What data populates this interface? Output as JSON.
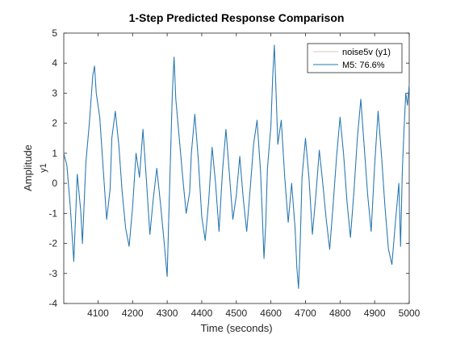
{
  "chart_data": {
    "type": "line",
    "title": "1-Step Predicted Response Comparison",
    "xlabel": "Time (seconds)",
    "ylabel": "Amplitude",
    "channel_label": "y1",
    "xlim": [
      4001,
      5000
    ],
    "ylim": [
      -4,
      5
    ],
    "x_ticks": [
      4100,
      4200,
      4300,
      4400,
      4500,
      4600,
      4700,
      4800,
      4900,
      5000
    ],
    "y_ticks": [
      -4,
      -3,
      -2,
      -1,
      0,
      1,
      2,
      3,
      4,
      5
    ],
    "legend_position": "top-right",
    "grid": false,
    "series": [
      {
        "name": "noise5v (y1)",
        "color": "#d9c4c4",
        "points": [
          [
            4001,
            1.0
          ],
          [
            4010,
            0.6
          ],
          [
            4020,
            -0.8
          ],
          [
            4030,
            -2.6
          ],
          [
            4040,
            0.3
          ],
          [
            4050,
            -0.9
          ],
          [
            4055,
            -2.0
          ],
          [
            4065,
            0.7
          ],
          [
            4075,
            2.0
          ],
          [
            4085,
            3.6
          ],
          [
            4090,
            3.9
          ],
          [
            4095,
            3.0
          ],
          [
            4105,
            2.2
          ],
          [
            4115,
            0.5
          ],
          [
            4125,
            -1.2
          ],
          [
            4135,
            -0.2
          ],
          [
            4140,
            1.5
          ],
          [
            4150,
            2.4
          ],
          [
            4160,
            1.3
          ],
          [
            4170,
            -0.3
          ],
          [
            4180,
            -1.5
          ],
          [
            4190,
            -2.1
          ],
          [
            4200,
            -0.8
          ],
          [
            4210,
            1.0
          ],
          [
            4220,
            0.2
          ],
          [
            4230,
            1.8
          ],
          [
            4240,
            0.1
          ],
          [
            4250,
            -1.7
          ],
          [
            4260,
            -0.5
          ],
          [
            4270,
            0.5
          ],
          [
            4280,
            -0.6
          ],
          [
            4290,
            -1.8
          ],
          [
            4300,
            -3.1
          ],
          [
            4305,
            -1.0
          ],
          [
            4310,
            1.0
          ],
          [
            4315,
            3.0
          ],
          [
            4320,
            4.2
          ],
          [
            4325,
            2.8
          ],
          [
            4335,
            1.5
          ],
          [
            4345,
            0.2
          ],
          [
            4355,
            -1.0
          ],
          [
            4365,
            -0.3
          ],
          [
            4370,
            1.0
          ],
          [
            4380,
            2.3
          ],
          [
            4390,
            0.8
          ],
          [
            4400,
            -1.1
          ],
          [
            4410,
            -1.9
          ],
          [
            4420,
            -0.6
          ],
          [
            4430,
            1.2
          ],
          [
            4440,
            0.0
          ],
          [
            4450,
            -1.6
          ],
          [
            4460,
            0.4
          ],
          [
            4470,
            1.8
          ],
          [
            4480,
            0.3
          ],
          [
            4490,
            -1.2
          ],
          [
            4500,
            -0.4
          ],
          [
            4510,
            0.9
          ],
          [
            4520,
            -0.5
          ],
          [
            4530,
            -1.6
          ],
          [
            4540,
            -0.2
          ],
          [
            4550,
            1.3
          ],
          [
            4560,
            2.1
          ],
          [
            4570,
            0.4
          ],
          [
            4575,
            -1.0
          ],
          [
            4580,
            -2.5
          ],
          [
            4585,
            -1.4
          ],
          [
            4590,
            0.5
          ],
          [
            4600,
            1.9
          ],
          [
            4605,
            3.5
          ],
          [
            4610,
            4.6
          ],
          [
            4615,
            3.0
          ],
          [
            4620,
            1.3
          ],
          [
            4630,
            2.1
          ],
          [
            4640,
            0.2
          ],
          [
            4650,
            -1.3
          ],
          [
            4660,
            0.0
          ],
          [
            4670,
            -1.5
          ],
          [
            4675,
            -2.8
          ],
          [
            4680,
            -3.5
          ],
          [
            4685,
            -1.9
          ],
          [
            4690,
            0.2
          ],
          [
            4700,
            1.5
          ],
          [
            4710,
            0.2
          ],
          [
            4720,
            -1.7
          ],
          [
            4730,
            -0.4
          ],
          [
            4740,
            1.1
          ],
          [
            4750,
            0.0
          ],
          [
            4760,
            -1.2
          ],
          [
            4770,
            -2.2
          ],
          [
            4780,
            -0.7
          ],
          [
            4790,
            0.9
          ],
          [
            4800,
            2.2
          ],
          [
            4810,
            1.0
          ],
          [
            4820,
            -0.6
          ],
          [
            4830,
            -1.8
          ],
          [
            4840,
            -0.3
          ],
          [
            4850,
            1.5
          ],
          [
            4860,
            2.8
          ],
          [
            4870,
            1.2
          ],
          [
            4880,
            -0.4
          ],
          [
            4890,
            -1.6
          ],
          [
            4900,
            0.6
          ],
          [
            4910,
            2.4
          ],
          [
            4920,
            0.9
          ],
          [
            4930,
            -0.8
          ],
          [
            4940,
            -2.2
          ],
          [
            4950,
            -2.7
          ],
          [
            4960,
            -1.3
          ],
          [
            4970,
            0.0
          ],
          [
            4975,
            -2.1
          ],
          [
            4980,
            0.4
          ],
          [
            4985,
            1.8
          ],
          [
            4990,
            3.0
          ],
          [
            4995,
            2.6
          ],
          [
            5000,
            3.3
          ]
        ]
      },
      {
        "name": "M5: 76.6%",
        "color": "#1f77b4",
        "points": [
          [
            4001,
            1.0
          ],
          [
            4010,
            0.6
          ],
          [
            4020,
            -0.8
          ],
          [
            4030,
            -2.6
          ],
          [
            4040,
            0.3
          ],
          [
            4050,
            -0.9
          ],
          [
            4055,
            -2.0
          ],
          [
            4065,
            0.7
          ],
          [
            4075,
            2.0
          ],
          [
            4085,
            3.6
          ],
          [
            4090,
            3.9
          ],
          [
            4095,
            3.0
          ],
          [
            4105,
            2.2
          ],
          [
            4115,
            0.5
          ],
          [
            4125,
            -1.2
          ],
          [
            4135,
            -0.2
          ],
          [
            4140,
            1.5
          ],
          [
            4150,
            2.4
          ],
          [
            4160,
            1.3
          ],
          [
            4170,
            -0.3
          ],
          [
            4180,
            -1.5
          ],
          [
            4190,
            -2.1
          ],
          [
            4200,
            -0.8
          ],
          [
            4210,
            1.0
          ],
          [
            4220,
            0.2
          ],
          [
            4230,
            1.8
          ],
          [
            4240,
            0.1
          ],
          [
            4250,
            -1.7
          ],
          [
            4260,
            -0.5
          ],
          [
            4270,
            0.5
          ],
          [
            4280,
            -0.6
          ],
          [
            4290,
            -1.8
          ],
          [
            4300,
            -3.1
          ],
          [
            4305,
            -1.0
          ],
          [
            4310,
            1.0
          ],
          [
            4315,
            3.0
          ],
          [
            4320,
            4.2
          ],
          [
            4325,
            2.8
          ],
          [
            4335,
            1.5
          ],
          [
            4345,
            0.2
          ],
          [
            4355,
            -1.0
          ],
          [
            4365,
            -0.3
          ],
          [
            4370,
            1.0
          ],
          [
            4380,
            2.3
          ],
          [
            4390,
            0.8
          ],
          [
            4400,
            -1.1
          ],
          [
            4410,
            -1.9
          ],
          [
            4420,
            -0.6
          ],
          [
            4430,
            1.2
          ],
          [
            4440,
            0.0
          ],
          [
            4450,
            -1.6
          ],
          [
            4460,
            0.4
          ],
          [
            4470,
            1.8
          ],
          [
            4480,
            0.3
          ],
          [
            4490,
            -1.2
          ],
          [
            4500,
            -0.4
          ],
          [
            4510,
            0.9
          ],
          [
            4520,
            -0.5
          ],
          [
            4530,
            -1.6
          ],
          [
            4540,
            -0.2
          ],
          [
            4550,
            1.3
          ],
          [
            4560,
            2.1
          ],
          [
            4570,
            0.4
          ],
          [
            4575,
            -1.0
          ],
          [
            4580,
            -2.5
          ],
          [
            4585,
            -1.4
          ],
          [
            4590,
            0.5
          ],
          [
            4600,
            1.9
          ],
          [
            4605,
            3.5
          ],
          [
            4610,
            4.6
          ],
          [
            4615,
            3.0
          ],
          [
            4620,
            1.3
          ],
          [
            4630,
            2.1
          ],
          [
            4640,
            0.2
          ],
          [
            4650,
            -1.3
          ],
          [
            4660,
            0.0
          ],
          [
            4670,
            -1.5
          ],
          [
            4675,
            -2.8
          ],
          [
            4680,
            -3.5
          ],
          [
            4685,
            -1.9
          ],
          [
            4690,
            0.2
          ],
          [
            4700,
            1.5
          ],
          [
            4710,
            0.2
          ],
          [
            4720,
            -1.7
          ],
          [
            4730,
            -0.4
          ],
          [
            4740,
            1.1
          ],
          [
            4750,
            0.0
          ],
          [
            4760,
            -1.2
          ],
          [
            4770,
            -2.2
          ],
          [
            4780,
            -0.7
          ],
          [
            4790,
            0.9
          ],
          [
            4800,
            2.2
          ],
          [
            4810,
            1.0
          ],
          [
            4820,
            -0.6
          ],
          [
            4830,
            -1.8
          ],
          [
            4840,
            -0.3
          ],
          [
            4850,
            1.5
          ],
          [
            4860,
            2.8
          ],
          [
            4870,
            1.2
          ],
          [
            4880,
            -0.4
          ],
          [
            4890,
            -1.6
          ],
          [
            4900,
            0.6
          ],
          [
            4910,
            2.4
          ],
          [
            4920,
            0.9
          ],
          [
            4930,
            -0.8
          ],
          [
            4940,
            -2.2
          ],
          [
            4950,
            -2.7
          ],
          [
            4960,
            -1.3
          ],
          [
            4970,
            0.0
          ],
          [
            4975,
            -2.1
          ],
          [
            4980,
            0.4
          ],
          [
            4985,
            1.8
          ],
          [
            4990,
            3.0
          ],
          [
            4995,
            2.6
          ],
          [
            5000,
            3.3
          ]
        ]
      }
    ]
  }
}
